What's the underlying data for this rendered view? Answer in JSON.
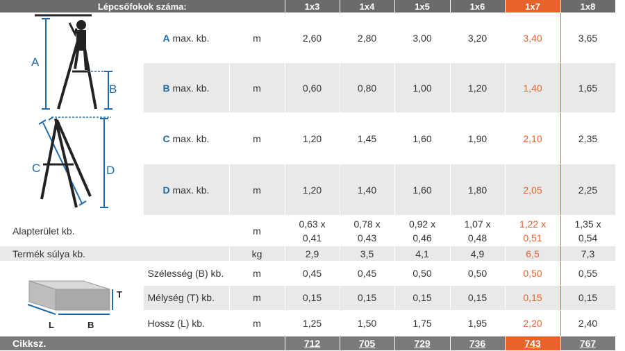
{
  "header": {
    "title": "Lépcsőfokok száma:",
    "columns": [
      "1x3",
      "1x4",
      "1x5",
      "1x6",
      "1x7",
      "1x8"
    ]
  },
  "rows": [
    {
      "letter": "A",
      "label": " max. kb.",
      "unit": "m",
      "values": [
        "2,60",
        "2,80",
        "3,00",
        "3,20",
        "3,40",
        "3,65"
      ]
    },
    {
      "letter": "B",
      "label": " max. kb.",
      "unit": "m",
      "values": [
        "0,60",
        "0,80",
        "1,00",
        "1,20",
        "1,40",
        "1,65"
      ]
    },
    {
      "letter": "C",
      "label": " max. kb.",
      "unit": "m",
      "values": [
        "1,20",
        "1,45",
        "1,60",
        "1,90",
        "2,10",
        "2,35"
      ]
    },
    {
      "letter": "D",
      "label": " max. kb.",
      "unit": "m",
      "values": [
        "1,20",
        "1,40",
        "1,60",
        "1,80",
        "2,05",
        "2,25"
      ]
    }
  ],
  "area": {
    "label": "Alapterület kb.",
    "unit": "m",
    "values": [
      [
        "0,63 x",
        "0,41"
      ],
      [
        "0,78 x",
        "0,43"
      ],
      [
        "0,92 x",
        "0,46"
      ],
      [
        "1,07 x",
        "0,48"
      ],
      [
        "1,22 x",
        "0,51"
      ],
      [
        "1,35 x",
        "0,54"
      ]
    ]
  },
  "weight": {
    "label": "Termék súlya kb.",
    "unit": "kg",
    "values": [
      "2,9",
      "3,5",
      "4,1",
      "4,9",
      "6,5",
      "7,3"
    ]
  },
  "package": [
    {
      "label": "Szélesség (B) kb.",
      "unit": "m",
      "values": [
        "0,45",
        "0,45",
        "0,50",
        "0,50",
        "0,50",
        "0,55"
      ]
    },
    {
      "label": "Mélység (T) kb.",
      "unit": "m",
      "values": [
        "0,15",
        "0,15",
        "0,15",
        "0,15",
        "0,15",
        "0,15"
      ]
    },
    {
      "label": "Hossz (L) kb.",
      "unit": "m",
      "values": [
        "1,25",
        "1,50",
        "1,75",
        "1,95",
        "2,20",
        "2,40"
      ]
    }
  ],
  "diagram_letters": {
    "a": "A",
    "b": "B",
    "c": "C",
    "d": "D",
    "l": "L",
    "bb": "B",
    "t": "T"
  },
  "footer": {
    "label": "Cikksz.",
    "values": [
      "712",
      "705",
      "729",
      "736",
      "743",
      "767"
    ]
  },
  "colors": {
    "accent": "#e8622a",
    "blue": "#1f6aa8",
    "header": "#6b6b6b"
  }
}
